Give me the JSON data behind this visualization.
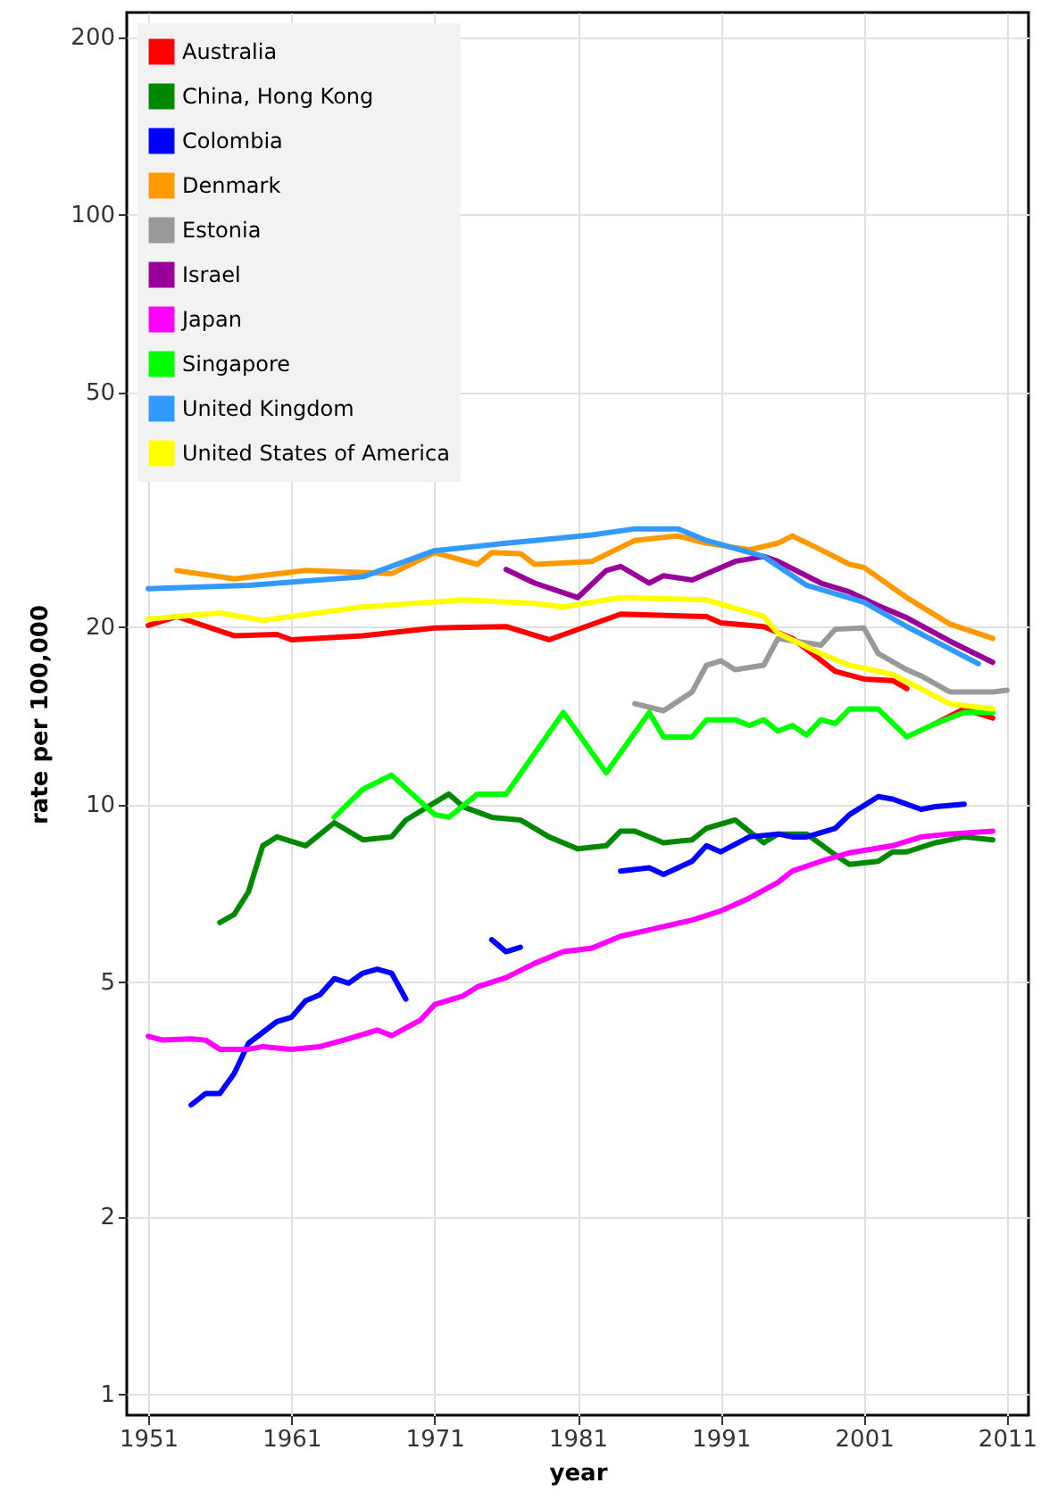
{
  "chart_data": {
    "type": "line",
    "xlabel": "year",
    "ylabel": "rate per 100,000",
    "log": "y",
    "grid": true,
    "legend": "top left",
    "line_style": "solid",
    "marker": "none",
    "xlim": [
      1949.5,
      2012.5
    ],
    "xticks": [
      1951,
      1961,
      1971,
      1981,
      1991,
      2001,
      2011
    ],
    "ylim": [
      0.92,
      220
    ],
    "yticks": [
      1,
      2,
      5,
      10,
      20,
      50,
      100,
      200
    ],
    "series": [
      {
        "name": "Australia",
        "color": "#ff0000",
        "x": [
          1951,
          1953,
          1957,
          1960,
          1961,
          1966,
          1971,
          1976,
          1979,
          1984,
          1990,
          1991,
          1994,
          1996,
          1999,
          2001,
          2003,
          2004,
          2005,
          2006,
          2008,
          2010
        ],
        "values": [
          20.1,
          20.8,
          19.3,
          19.4,
          19.0,
          19.3,
          19.9,
          20.0,
          19.0,
          21.0,
          20.8,
          20.3,
          20.0,
          19.1,
          16.8,
          16.3,
          16.2,
          15.7,
          null,
          13.7,
          14.5,
          14.0
        ]
      },
      {
        "name": "China, Hong Kong",
        "color": "#008800",
        "x": [
          1956,
          1957,
          1958,
          1959,
          1960,
          1962,
          1964,
          1966,
          1968,
          1969,
          1972,
          1973,
          1975,
          1977,
          1979,
          1981,
          1983,
          1984,
          1985,
          1987,
          1989,
          1990,
          1992,
          1994,
          1995,
          1997,
          1999,
          2000,
          2002,
          2003,
          2004,
          2006,
          2008,
          2010
        ],
        "values": [
          6.3,
          6.5,
          7.1,
          8.5,
          8.8,
          8.5,
          9.3,
          8.7,
          8.8,
          9.4,
          10.4,
          9.9,
          9.5,
          9.4,
          8.8,
          8.4,
          8.5,
          9.0,
          9.0,
          8.6,
          8.7,
          9.1,
          9.4,
          8.6,
          8.9,
          8.9,
          8.2,
          7.9,
          8.0,
          8.3,
          8.3,
          8.6,
          8.8,
          8.7
        ]
      },
      {
        "name": "Colombia",
        "color": "#0000ff",
        "x": [
          1954,
          1955,
          1956,
          1957,
          1958,
          1960,
          1961,
          1962,
          1963,
          1964,
          1965,
          1966,
          1967,
          1968,
          1969,
          1974,
          1975,
          1976,
          1977,
          1980,
          1984,
          1986,
          1987,
          1989,
          1990,
          1991,
          1993,
          1995,
          1996,
          1997,
          1999,
          2000,
          2002,
          2003,
          2005,
          2006,
          2008
        ],
        "values": [
          3.09,
          3.23,
          3.23,
          3.49,
          3.93,
          4.28,
          4.35,
          4.64,
          4.75,
          5.06,
          4.97,
          5.17,
          5.25,
          5.17,
          4.67,
          null,
          5.89,
          5.62,
          5.72,
          null,
          7.7,
          7.8,
          7.6,
          8.0,
          8.5,
          8.3,
          8.8,
          8.9,
          8.8,
          8.8,
          9.1,
          9.6,
          10.3,
          10.2,
          9.8,
          9.9,
          10.0
        ]
      },
      {
        "name": "Denmark",
        "color": "#ff9900",
        "x": [
          1953,
          1957,
          1962,
          1968,
          1971,
          1974,
          1975,
          1977,
          1978,
          1982,
          1985,
          1988,
          1990,
          1993,
          1995,
          1996,
          1998,
          2000,
          2001,
          2004,
          2007,
          2010
        ],
        "values": [
          24.9,
          24.1,
          24.9,
          24.6,
          26.7,
          25.5,
          26.7,
          26.6,
          25.5,
          25.8,
          28.0,
          28.5,
          27.7,
          27.0,
          27.7,
          28.5,
          27.0,
          25.5,
          25.2,
          22.4,
          20.2,
          19.1
        ]
      },
      {
        "name": "Estonia",
        "color": "#999999",
        "x": [
          1985,
          1987,
          1989,
          1990,
          1991,
          1992,
          1994,
          1995,
          1998,
          1999,
          2001,
          2002,
          2004,
          2005,
          2007,
          2010,
          2011
        ],
        "values": [
          14.8,
          14.4,
          15.5,
          17.2,
          17.5,
          16.9,
          17.2,
          19.1,
          18.6,
          19.8,
          19.9,
          18.0,
          16.9,
          16.5,
          15.5,
          15.5,
          15.6
        ]
      },
      {
        "name": "Israel",
        "color": "#990099",
        "x": [
          1976,
          1978,
          1981,
          1983,
          1984,
          1986,
          1987,
          1989,
          1992,
          1994,
          1995,
          1998,
          2000,
          2002,
          2004,
          2007,
          2010
        ],
        "values": [
          25.0,
          23.7,
          22.4,
          24.9,
          25.3,
          23.7,
          24.4,
          24.0,
          25.8,
          26.3,
          25.8,
          23.7,
          22.9,
          21.7,
          20.7,
          18.9,
          17.4
        ]
      },
      {
        "name": "Japan",
        "color": "#ff00ff",
        "x": [
          1951,
          1952,
          1954,
          1955,
          1956,
          1958,
          1959,
          1961,
          1963,
          1965,
          1967,
          1968,
          1970,
          1971,
          1973,
          1974,
          1976,
          1978,
          1980,
          1982,
          1984,
          1986,
          1989,
          1991,
          1993,
          1995,
          1996,
          1998,
          2000,
          2003,
          2005,
          2007,
          2010
        ],
        "values": [
          4.04,
          3.98,
          4.0,
          3.98,
          3.84,
          3.84,
          3.88,
          3.84,
          3.88,
          4.0,
          4.14,
          4.05,
          4.3,
          4.57,
          4.73,
          4.9,
          5.08,
          5.37,
          5.62,
          5.7,
          5.97,
          6.12,
          6.36,
          6.59,
          6.93,
          7.37,
          7.7,
          8.0,
          8.27,
          8.5,
          8.8,
          8.9,
          9.0
        ]
      },
      {
        "name": "Singapore",
        "color": "#00ff00",
        "x": [
          1964,
          1966,
          1968,
          1971,
          1972,
          1974,
          1976,
          1978,
          1980,
          1983,
          1986,
          1987,
          1989,
          1990,
          1992,
          1993,
          1994,
          1995,
          1996,
          1997,
          1998,
          1999,
          2000,
          2002,
          2004,
          2006,
          2008,
          2010
        ],
        "values": [
          9.5,
          10.6,
          11.2,
          9.6,
          9.5,
          10.4,
          10.4,
          12.2,
          14.3,
          11.3,
          14.3,
          13.0,
          13.0,
          13.9,
          13.9,
          13.6,
          13.9,
          13.3,
          13.6,
          13.1,
          13.9,
          13.7,
          14.5,
          14.5,
          13.0,
          13.7,
          14.3,
          14.3
        ]
      },
      {
        "name": "United Kingdom",
        "color": "#3399ff",
        "x": [
          1951,
          1958,
          1966,
          1971,
          1976,
          1978,
          1982,
          1985,
          1988,
          1990,
          1994,
          1997,
          2001,
          2004,
          2009
        ],
        "values": [
          23.2,
          23.5,
          24.3,
          26.9,
          27.7,
          28.0,
          28.6,
          29.3,
          29.3,
          28.0,
          26.3,
          23.5,
          22.0,
          20.0,
          17.3
        ]
      },
      {
        "name": "United States of America",
        "color": "#ffff00",
        "x": [
          1951,
          1956,
          1959,
          1966,
          1973,
          1978,
          1980,
          1984,
          1990,
          1994,
          1995,
          1998,
          2000,
          2003,
          2007,
          2010
        ],
        "values": [
          20.6,
          21.1,
          20.5,
          21.6,
          22.2,
          21.9,
          21.6,
          22.4,
          22.2,
          20.8,
          19.5,
          18.0,
          17.2,
          16.6,
          14.8,
          14.5
        ]
      }
    ]
  }
}
